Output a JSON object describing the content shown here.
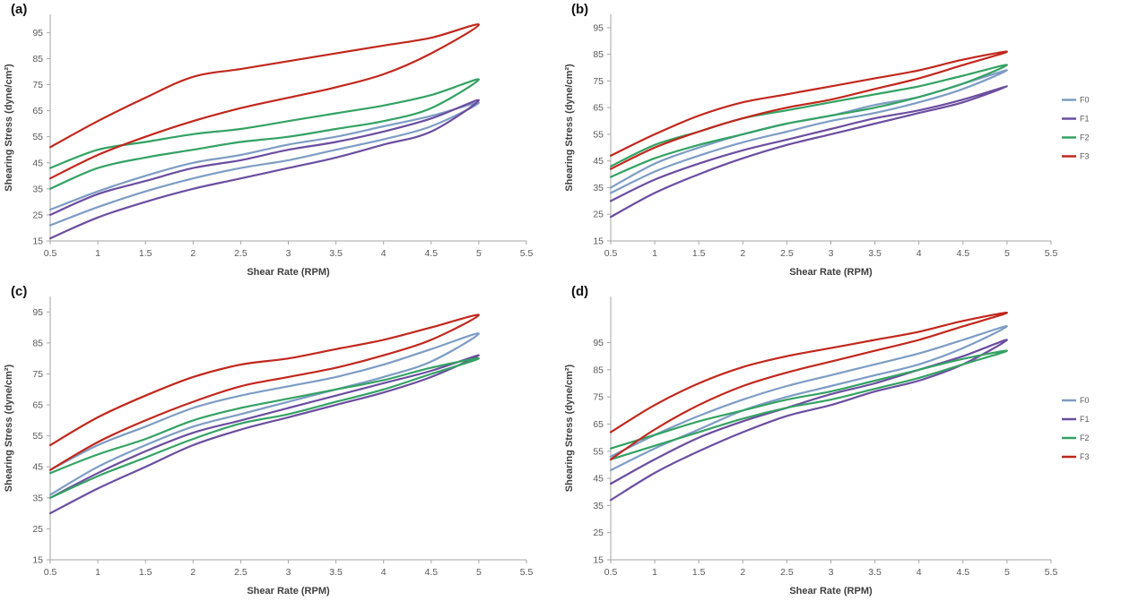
{
  "figure": {
    "x_axis_label": "Shear Rate (RPM)",
    "y_axis_label": "Shearing Stress (dyne/cm²)"
  },
  "colors": {
    "F0": "#7d9cc4",
    "F1": "#6b4da0",
    "F2": "#33a263",
    "F3": "#c1271c",
    "axis": "#a6a6a6",
    "tick_text": "#595959",
    "axis_title_text": "#3f3f3f"
  },
  "legend": {
    "entries": [
      "F0",
      "F1",
      "F2",
      "F3"
    ]
  },
  "chart_data": [
    {
      "panel_label": "(a)",
      "type": "line",
      "title": "",
      "xlabel": "Shear Rate (RPM)",
      "ylabel": "Shearing Stress (dyne/cm²)",
      "x": [
        0.5,
        1,
        1.5,
        2,
        2.5,
        3,
        3.5,
        4,
        4.5,
        5
      ],
      "xticks": [
        0.5,
        1,
        1.5,
        2,
        2.5,
        3,
        3.5,
        4,
        4.5,
        5,
        5.5
      ],
      "yticks": [
        15,
        25,
        35,
        45,
        55,
        65,
        75,
        85,
        95
      ],
      "xlim": [
        0.5,
        5.5
      ],
      "ylim": [
        15,
        102
      ],
      "grid": false,
      "show_legend": false,
      "series": [
        {
          "name": "F0",
          "color": "#7d9cc4",
          "up_curve": [
            21,
            28,
            34,
            39,
            43,
            46,
            50,
            54,
            59,
            68
          ],
          "down_curve": [
            27,
            34,
            40,
            45,
            48,
            52,
            55,
            59,
            63,
            68
          ]
        },
        {
          "name": "F1",
          "color": "#6b4da0",
          "up_curve": [
            16,
            24,
            30,
            35,
            39,
            43,
            47,
            52,
            57,
            69
          ],
          "down_curve": [
            25,
            33,
            38,
            43,
            46,
            50,
            53,
            57,
            62,
            69
          ]
        },
        {
          "name": "F2",
          "color": "#33a263",
          "up_curve": [
            35,
            43,
            47,
            50,
            53,
            55,
            58,
            61,
            66,
            77
          ],
          "down_curve": [
            43,
            50,
            53,
            56,
            58,
            61,
            64,
            67,
            71,
            77
          ]
        },
        {
          "name": "F3",
          "color": "#c1271c",
          "up_curve": [
            39,
            48,
            55,
            61,
            66,
            70,
            74,
            79,
            87,
            98
          ],
          "down_curve": [
            51,
            61,
            70,
            78,
            81,
            84,
            87,
            90,
            93,
            98
          ]
        }
      ]
    },
    {
      "panel_label": "(b)",
      "type": "line",
      "title": "",
      "xlabel": "Shear Rate (RPM)",
      "ylabel": "Shearing Stress (dyne/cm²)",
      "x": [
        0.5,
        1,
        1.5,
        2,
        2.5,
        3,
        3.5,
        4,
        4.5,
        5
      ],
      "xticks": [
        0.5,
        1,
        1.5,
        2,
        2.5,
        3,
        3.5,
        4,
        4.5,
        5,
        5.5
      ],
      "yticks": [
        15,
        25,
        35,
        45,
        55,
        65,
        75,
        85,
        95
      ],
      "xlim": [
        0.5,
        5.5
      ],
      "ylim": [
        15,
        100
      ],
      "grid": false,
      "show_legend": true,
      "series": [
        {
          "name": "F0",
          "color": "#7d9cc4",
          "up_curve": [
            33,
            41,
            47,
            52,
            56,
            60,
            63,
            67,
            72,
            79
          ],
          "down_curve": [
            35,
            44,
            50,
            55,
            59,
            62,
            66,
            69,
            74,
            79
          ]
        },
        {
          "name": "F1",
          "color": "#6b4da0",
          "up_curve": [
            24,
            33,
            40,
            46,
            51,
            55,
            59,
            63,
            67,
            73
          ],
          "down_curve": [
            30,
            38,
            44,
            49,
            53,
            57,
            61,
            64,
            68,
            73
          ]
        },
        {
          "name": "F2",
          "color": "#33a263",
          "up_curve": [
            39,
            46,
            51,
            55,
            59,
            62,
            65,
            69,
            74,
            81
          ],
          "down_curve": [
            43,
            51,
            56,
            61,
            64,
            67,
            70,
            73,
            77,
            81
          ]
        },
        {
          "name": "F3",
          "color": "#c1271c",
          "up_curve": [
            42,
            50,
            56,
            61,
            65,
            68,
            72,
            76,
            81,
            86
          ],
          "down_curve": [
            47,
            55,
            62,
            67,
            70,
            73,
            76,
            79,
            83,
            86
          ]
        }
      ]
    },
    {
      "panel_label": "(c)",
      "type": "line",
      "title": "",
      "xlabel": "Shear Rate (RPM)",
      "ylabel": "Shearing Stress (dyne/cm²)",
      "x": [
        0.5,
        1,
        1.5,
        2,
        2.5,
        3,
        3.5,
        4,
        4.5,
        5
      ],
      "xticks": [
        0.5,
        1,
        1.5,
        2,
        2.5,
        3,
        3.5,
        4,
        4.5,
        5,
        5.5
      ],
      "yticks": [
        15,
        25,
        35,
        45,
        55,
        65,
        75,
        85,
        95
      ],
      "xlim": [
        0.5,
        5.5
      ],
      "ylim": [
        15,
        100
      ],
      "grid": false,
      "show_legend": false,
      "series": [
        {
          "name": "F0",
          "color": "#7d9cc4",
          "up_curve": [
            36,
            45,
            52,
            58,
            62,
            66,
            70,
            74,
            79,
            88
          ],
          "down_curve": [
            44,
            52,
            58,
            64,
            68,
            71,
            74,
            78,
            83,
            88
          ]
        },
        {
          "name": "F1",
          "color": "#6b4da0",
          "up_curve": [
            30,
            38,
            45,
            52,
            57,
            61,
            65,
            69,
            74,
            81
          ],
          "down_curve": [
            35,
            43,
            50,
            56,
            60,
            64,
            68,
            72,
            76,
            81
          ]
        },
        {
          "name": "F2",
          "color": "#33a263",
          "up_curve": [
            35,
            42,
            48,
            54,
            59,
            62,
            66,
            70,
            75,
            80
          ],
          "down_curve": [
            43,
            49,
            54,
            60,
            64,
            67,
            70,
            73,
            77,
            80
          ]
        },
        {
          "name": "F3",
          "color": "#c1271c",
          "up_curve": [
            44,
            53,
            60,
            66,
            71,
            74,
            77,
            81,
            86,
            94
          ],
          "down_curve": [
            52,
            61,
            68,
            74,
            78,
            80,
            83,
            86,
            90,
            94
          ]
        }
      ]
    },
    {
      "panel_label": "(d)",
      "type": "line",
      "title": "",
      "xlabel": "Shear Rate (RPM)",
      "ylabel": "Shearing Stress (dyne/cm²)",
      "x": [
        0.5,
        1,
        1.5,
        2,
        2.5,
        3,
        3.5,
        4,
        4.5,
        5
      ],
      "xticks": [
        0.5,
        1,
        1.5,
        2,
        2.5,
        3,
        3.5,
        4,
        4.5,
        5,
        5.5
      ],
      "yticks": [
        15,
        25,
        35,
        45,
        55,
        65,
        75,
        85,
        95
      ],
      "xlim": [
        0.5,
        5.5
      ],
      "ylim": [
        15,
        112
      ],
      "grid": false,
      "show_legend": true,
      "series": [
        {
          "name": "F0",
          "color": "#7d9cc4",
          "up_curve": [
            48,
            56,
            63,
            70,
            75,
            79,
            83,
            87,
            93,
            101
          ],
          "down_curve": [
            53,
            61,
            68,
            74,
            79,
            83,
            87,
            91,
            96,
            101
          ]
        },
        {
          "name": "F1",
          "color": "#6b4da0",
          "up_curve": [
            37,
            47,
            55,
            62,
            68,
            72,
            77,
            81,
            87,
            96
          ],
          "down_curve": [
            43,
            52,
            60,
            66,
            71,
            76,
            80,
            85,
            90,
            96
          ]
        },
        {
          "name": "F2",
          "color": "#33a263",
          "up_curve": [
            52,
            57,
            62,
            67,
            71,
            74,
            78,
            82,
            87,
            92
          ],
          "down_curve": [
            56,
            61,
            66,
            70,
            74,
            77,
            81,
            85,
            89,
            92
          ]
        },
        {
          "name": "F3",
          "color": "#c1271c",
          "up_curve": [
            52,
            63,
            72,
            79,
            84,
            88,
            92,
            96,
            101,
            106
          ],
          "down_curve": [
            62,
            72,
            80,
            86,
            90,
            93,
            96,
            99,
            103,
            106
          ]
        }
      ]
    }
  ]
}
